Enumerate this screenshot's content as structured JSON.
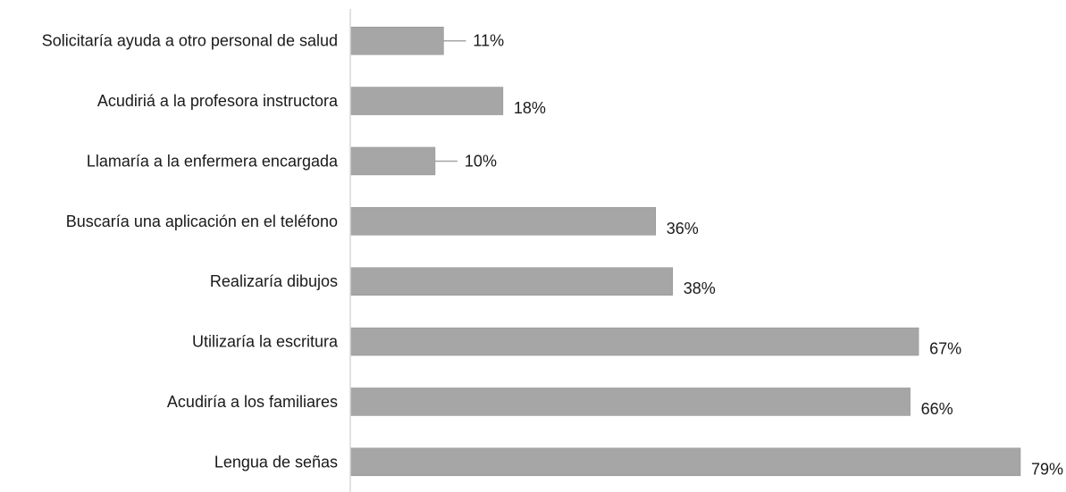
{
  "chart_data": {
    "type": "bar",
    "orientation": "horizontal",
    "categories": [
      "Solicitaría ayuda a otro personal de salud",
      "Acudiriá a la profesora instructora",
      "Llamaría a la enfermera encargada",
      "Buscaría una aplicación en el teléfono",
      "Realizaría dibujos",
      "Utilizaría la escritura",
      "Acudiría a los familiares",
      "Lengua de señas"
    ],
    "values": [
      11,
      18,
      10,
      36,
      38,
      67,
      66,
      79
    ],
    "value_labels": [
      "11%",
      "18%",
      "10%",
      "36%",
      "38%",
      "67%",
      "66%",
      "79%"
    ],
    "title": "",
    "xlabel": "",
    "ylabel": "",
    "xlim": [
      0,
      79
    ],
    "grid": false,
    "legend": "none",
    "colors": {
      "bar_fill": "#a6a6a6",
      "bar_edge": "#8c8c8c",
      "axis": "#d9d9d9",
      "leader": "#a6a6a6",
      "text": "#1a1a1a"
    }
  }
}
